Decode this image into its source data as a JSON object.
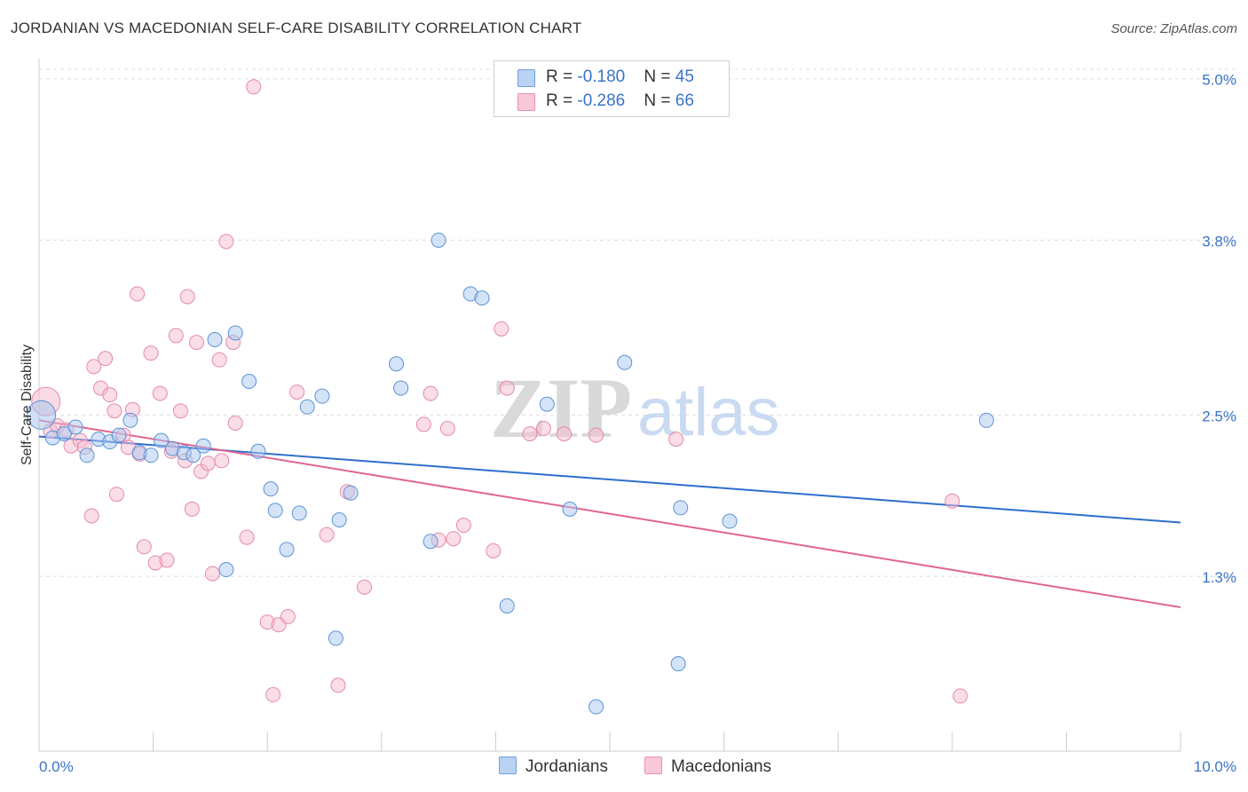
{
  "header": {
    "title": "JORDANIAN VS MACEDONIAN SELF-CARE DISABILITY CORRELATION CHART",
    "source": "Source: ZipAtlas.com"
  },
  "legend_top": {
    "rows": [
      {
        "r_label": "R = ",
        "r_value": "-0.180",
        "n_label": "N = ",
        "n_value": "45"
      },
      {
        "r_label": "R = ",
        "r_value": "-0.286",
        "n_label": "N = ",
        "n_value": "66"
      }
    ]
  },
  "legend_bottom": {
    "items": [
      "Jordanians",
      "Macedonians"
    ]
  },
  "watermark": {
    "zip": "ZIP",
    "atlas": "atlas"
  },
  "colors": {
    "jordanians_fill": "#a9c8ef",
    "jordanians_stroke": "#5d93d6",
    "jordanians_line": "#2f6fcd",
    "macedonians_fill": "#f5bcd0",
    "macedonians_stroke": "#e58aab",
    "macedonians_line": "#e0648f",
    "axis_text": "#3a74c7",
    "grid": "#dddddd"
  },
  "chart_data": {
    "type": "scatter",
    "title": "JORDANIAN VS MACEDONIAN SELF-CARE DISABILITY CORRELATION CHART",
    "xlabel": "",
    "ylabel": "Self-Care Disability",
    "xlim": [
      0,
      10
    ],
    "ylim": [
      0,
      5.15
    ],
    "x_tick_labels": [
      "0.0%",
      "10.0%"
    ],
    "y_ticks": [
      1.3,
      2.5,
      3.8,
      5.0
    ],
    "y_tick_labels": [
      "1.3%",
      "2.5%",
      "3.8%",
      "5.0%"
    ],
    "grid": "horizontal dashed",
    "series": [
      {
        "name": "Jordanians",
        "r": -0.18,
        "n": 45,
        "trend": {
          "x": [
            0,
            10
          ],
          "y": [
            2.34,
            1.7
          ]
        },
        "points": [
          {
            "x": 0.02,
            "y": 2.5,
            "big": true
          },
          {
            "x": 0.12,
            "y": 2.33
          },
          {
            "x": 0.22,
            "y": 2.36
          },
          {
            "x": 0.32,
            "y": 2.41
          },
          {
            "x": 0.42,
            "y": 2.2
          },
          {
            "x": 0.52,
            "y": 2.32
          },
          {
            "x": 0.62,
            "y": 2.3
          },
          {
            "x": 0.7,
            "y": 2.35
          },
          {
            "x": 0.8,
            "y": 2.46
          },
          {
            "x": 0.88,
            "y": 2.22
          },
          {
            "x": 0.98,
            "y": 2.2
          },
          {
            "x": 1.07,
            "y": 2.31
          },
          {
            "x": 1.17,
            "y": 2.25
          },
          {
            "x": 1.27,
            "y": 2.22
          },
          {
            "x": 1.35,
            "y": 2.2
          },
          {
            "x": 1.44,
            "y": 2.27
          },
          {
            "x": 1.54,
            "y": 3.06
          },
          {
            "x": 1.72,
            "y": 3.11
          },
          {
            "x": 1.84,
            "y": 2.75
          },
          {
            "x": 1.92,
            "y": 2.23
          },
          {
            "x": 2.03,
            "y": 1.95
          },
          {
            "x": 2.07,
            "y": 1.79
          },
          {
            "x": 2.17,
            "y": 1.5
          },
          {
            "x": 2.28,
            "y": 1.77
          },
          {
            "x": 2.35,
            "y": 2.56
          },
          {
            "x": 2.48,
            "y": 2.64
          },
          {
            "x": 2.6,
            "y": 0.84
          },
          {
            "x": 2.63,
            "y": 1.72
          },
          {
            "x": 2.73,
            "y": 1.92
          },
          {
            "x": 1.64,
            "y": 1.35
          },
          {
            "x": 3.13,
            "y": 2.88
          },
          {
            "x": 3.17,
            "y": 2.7
          },
          {
            "x": 3.43,
            "y": 1.56
          },
          {
            "x": 3.5,
            "y": 3.8
          },
          {
            "x": 3.78,
            "y": 3.4
          },
          {
            "x": 3.88,
            "y": 3.37
          },
          {
            "x": 4.1,
            "y": 1.08
          },
          {
            "x": 4.45,
            "y": 2.58
          },
          {
            "x": 4.65,
            "y": 1.8
          },
          {
            "x": 4.88,
            "y": 0.33
          },
          {
            "x": 5.13,
            "y": 2.89
          },
          {
            "x": 5.6,
            "y": 0.65
          },
          {
            "x": 5.62,
            "y": 1.81
          },
          {
            "x": 6.05,
            "y": 1.71
          },
          {
            "x": 8.3,
            "y": 2.46
          }
        ]
      },
      {
        "name": "Macedonians",
        "r": -0.286,
        "n": 66,
        "trend": {
          "x": [
            0,
            10
          ],
          "y": [
            2.46,
            1.07
          ]
        },
        "points": [
          {
            "x": 0.06,
            "y": 2.6,
            "big": true
          },
          {
            "x": 0.1,
            "y": 2.38
          },
          {
            "x": 0.16,
            "y": 2.42
          },
          {
            "x": 0.24,
            "y": 2.39
          },
          {
            "x": 0.28,
            "y": 2.27
          },
          {
            "x": 0.36,
            "y": 2.31
          },
          {
            "x": 0.4,
            "y": 2.26
          },
          {
            "x": 0.46,
            "y": 1.75
          },
          {
            "x": 0.48,
            "y": 2.86
          },
          {
            "x": 0.54,
            "y": 2.7
          },
          {
            "x": 0.58,
            "y": 2.92
          },
          {
            "x": 0.62,
            "y": 2.65
          },
          {
            "x": 0.66,
            "y": 2.53
          },
          {
            "x": 0.68,
            "y": 1.91
          },
          {
            "x": 0.74,
            "y": 2.35
          },
          {
            "x": 0.78,
            "y": 2.26
          },
          {
            "x": 0.82,
            "y": 2.54
          },
          {
            "x": 0.86,
            "y": 3.4
          },
          {
            "x": 0.88,
            "y": 2.21
          },
          {
            "x": 0.92,
            "y": 1.52
          },
          {
            "x": 0.98,
            "y": 2.96
          },
          {
            "x": 1.02,
            "y": 1.4
          },
          {
            "x": 1.06,
            "y": 2.66
          },
          {
            "x": 1.12,
            "y": 1.42
          },
          {
            "x": 1.16,
            "y": 2.23
          },
          {
            "x": 1.2,
            "y": 3.09
          },
          {
            "x": 1.24,
            "y": 2.53
          },
          {
            "x": 1.28,
            "y": 2.16
          },
          {
            "x": 1.3,
            "y": 3.38
          },
          {
            "x": 1.34,
            "y": 1.8
          },
          {
            "x": 1.38,
            "y": 3.04
          },
          {
            "x": 1.42,
            "y": 2.08
          },
          {
            "x": 1.48,
            "y": 2.14
          },
          {
            "x": 1.52,
            "y": 1.32
          },
          {
            "x": 1.58,
            "y": 2.91
          },
          {
            "x": 1.6,
            "y": 2.16
          },
          {
            "x": 1.64,
            "y": 3.79
          },
          {
            "x": 1.7,
            "y": 3.04
          },
          {
            "x": 1.72,
            "y": 2.44
          },
          {
            "x": 1.82,
            "y": 1.59
          },
          {
            "x": 1.88,
            "y": 4.94
          },
          {
            "x": 2.0,
            "y": 0.96
          },
          {
            "x": 2.05,
            "y": 0.42
          },
          {
            "x": 2.1,
            "y": 0.94
          },
          {
            "x": 2.18,
            "y": 1.0
          },
          {
            "x": 2.26,
            "y": 2.67
          },
          {
            "x": 2.52,
            "y": 1.61
          },
          {
            "x": 2.62,
            "y": 0.49
          },
          {
            "x": 2.7,
            "y": 1.93
          },
          {
            "x": 2.85,
            "y": 1.22
          },
          {
            "x": 3.37,
            "y": 2.43
          },
          {
            "x": 3.43,
            "y": 2.66
          },
          {
            "x": 3.5,
            "y": 1.57
          },
          {
            "x": 3.58,
            "y": 2.4
          },
          {
            "x": 3.63,
            "y": 1.58
          },
          {
            "x": 3.72,
            "y": 1.68
          },
          {
            "x": 3.98,
            "y": 1.49
          },
          {
            "x": 4.05,
            "y": 3.14
          },
          {
            "x": 4.1,
            "y": 2.7
          },
          {
            "x": 4.3,
            "y": 2.36
          },
          {
            "x": 4.42,
            "y": 2.4
          },
          {
            "x": 4.6,
            "y": 2.36
          },
          {
            "x": 4.88,
            "y": 2.35
          },
          {
            "x": 5.58,
            "y": 2.32
          },
          {
            "x": 8.0,
            "y": 1.86
          },
          {
            "x": 8.07,
            "y": 0.41
          }
        ]
      }
    ]
  }
}
